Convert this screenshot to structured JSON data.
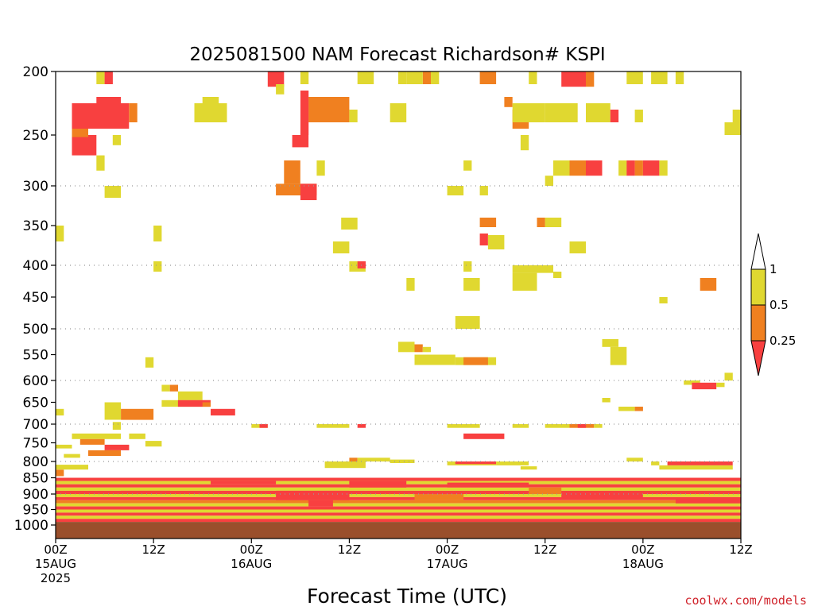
{
  "chart_data": {
    "type": "heatmap",
    "title": "2025081500 NAM Forecast Richardson# KSPI",
    "xlabel": "Forecast Time (UTC)",
    "ylabel": "",
    "credit": "coolwx.com/models",
    "x_unit": "forecast hour",
    "xlim": [
      0,
      84
    ],
    "y_unit": "hPa",
    "ylim": [
      1000,
      200
    ],
    "y_ticks": [
      200,
      250,
      300,
      350,
      400,
      450,
      500,
      550,
      600,
      650,
      700,
      750,
      800,
      850,
      900,
      950,
      1000
    ],
    "grid_levels": [
      300,
      400,
      500,
      600,
      700,
      800,
      900,
      1000
    ],
    "x_ticks": [
      {
        "hour": 0,
        "lines": [
          "00Z",
          "15AUG",
          "2025"
        ]
      },
      {
        "hour": 12,
        "lines": [
          "12Z"
        ]
      },
      {
        "hour": 24,
        "lines": [
          "00Z",
          "16AUG"
        ]
      },
      {
        "hour": 36,
        "lines": [
          "12Z"
        ]
      },
      {
        "hour": 48,
        "lines": [
          "00Z",
          "17AUG"
        ]
      },
      {
        "hour": 60,
        "lines": [
          "12Z"
        ]
      },
      {
        "hour": 72,
        "lines": [
          "00Z",
          "18AUG"
        ]
      },
      {
        "hour": 84,
        "lines": [
          "12Z"
        ]
      }
    ],
    "legend": {
      "ticks": [
        "1",
        "0.5",
        "0.25"
      ],
      "bins": [
        {
          "name": "0.5-1",
          "color": "#e0d830"
        },
        {
          "name": "0.25-0.5",
          "color": "#f08020"
        },
        {
          "name": "<0.25",
          "color": "#f84040"
        }
      ]
    },
    "colors": {
      "Y": "#e0d830",
      "O": "#f08020",
      "R": "#f84040",
      "ground": "#9a4f2c",
      "grid": "#999999"
    },
    "ground_level": 990,
    "cells": [
      [
        "Y",
        5,
        6,
        200,
        210
      ],
      [
        "R",
        6,
        7,
        200,
        210
      ],
      [
        "R",
        2,
        9,
        225,
        245
      ],
      [
        "O",
        9,
        10,
        225,
        240
      ],
      [
        "R",
        5,
        8,
        220,
        230
      ],
      [
        "R",
        2,
        5,
        250,
        270
      ],
      [
        "O",
        2,
        4,
        245,
        252
      ],
      [
        "Y",
        7,
        8,
        250,
        260
      ],
      [
        "Y",
        5,
        6,
        270,
        285
      ],
      [
        "Y",
        6,
        8,
        300,
        315
      ],
      [
        "Y",
        17,
        21,
        225,
        240
      ],
      [
        "Y",
        18,
        20,
        220,
        228
      ],
      [
        "Y",
        0,
        1,
        350,
        370
      ],
      [
        "Y",
        12,
        13,
        350,
        370
      ],
      [
        "Y",
        12,
        13,
        395,
        410
      ],
      [
        "R",
        26,
        28,
        200,
        212
      ],
      [
        "Y",
        27,
        28,
        210,
        218
      ],
      [
        "Y",
        30,
        31,
        200,
        210
      ],
      [
        "O",
        31,
        36,
        220,
        240
      ],
      [
        "R",
        30,
        31,
        215,
        250
      ],
      [
        "R",
        29,
        31,
        250,
        262
      ],
      [
        "Y",
        36,
        37,
        230,
        240
      ],
      [
        "O",
        28,
        30,
        275,
        298
      ],
      [
        "O",
        27,
        32,
        298,
        312
      ],
      [
        "R",
        30,
        32,
        298,
        318
      ],
      [
        "Y",
        32,
        33,
        275,
        290
      ],
      [
        "Y",
        37,
        39,
        200,
        210
      ],
      [
        "Y",
        42,
        43,
        200,
        210
      ],
      [
        "O",
        45,
        46,
        200,
        210
      ],
      [
        "Y",
        43,
        45,
        200,
        210
      ],
      [
        "Y",
        46,
        47,
        200,
        210
      ],
      [
        "Y",
        41,
        43,
        225,
        240
      ],
      [
        "Y",
        35,
        37,
        340,
        355
      ],
      [
        "Y",
        34,
        36,
        370,
        385
      ],
      [
        "Y",
        36,
        38,
        395,
        410
      ],
      [
        "R",
        37,
        38,
        395,
        405
      ],
      [
        "Y",
        48,
        50,
        300,
        312
      ],
      [
        "Y",
        52,
        53,
        300,
        312
      ],
      [
        "Y",
        50,
        51,
        275,
        285
      ],
      [
        "O",
        52,
        54,
        200,
        210
      ],
      [
        "O",
        55,
        56,
        220,
        228
      ],
      [
        "O",
        52,
        54,
        340,
        352
      ],
      [
        "R",
        52,
        53,
        360,
        375
      ],
      [
        "Y",
        53,
        55,
        362,
        380
      ],
      [
        "Y",
        50,
        51,
        395,
        410
      ],
      [
        "Y",
        50,
        52,
        420,
        440
      ],
      [
        "Y",
        43,
        44,
        420,
        440
      ],
      [
        "O",
        56,
        58,
        230,
        245
      ],
      [
        "Y",
        56,
        60,
        225,
        240
      ],
      [
        "Y",
        57,
        58,
        250,
        265
      ],
      [
        "Y",
        58,
        59,
        200,
        210
      ],
      [
        "Y",
        60,
        61,
        290,
        300
      ],
      [
        "O",
        59,
        60,
        340,
        352
      ],
      [
        "Y",
        60,
        62,
        340,
        352
      ],
      [
        "Y",
        56,
        61,
        400,
        412
      ],
      [
        "Y",
        56,
        59,
        412,
        440
      ],
      [
        "Y",
        61,
        62,
        410,
        420
      ],
      [
        "R",
        62,
        65,
        200,
        212
      ],
      [
        "O",
        65,
        66,
        200,
        212
      ],
      [
        "Y",
        60,
        64,
        225,
        240
      ],
      [
        "Y",
        61,
        63,
        275,
        290
      ],
      [
        "O",
        63,
        65,
        275,
        290
      ],
      [
        "R",
        65,
        67,
        275,
        290
      ],
      [
        "Y",
        63,
        65,
        370,
        385
      ],
      [
        "Y",
        65,
        68,
        225,
        240
      ],
      [
        "R",
        68,
        69,
        230,
        240
      ],
      [
        "Y",
        71,
        72,
        230,
        240
      ],
      [
        "Y",
        70,
        72,
        200,
        210
      ],
      [
        "Y",
        73,
        75,
        200,
        210
      ],
      [
        "Y",
        76,
        77,
        200,
        210
      ],
      [
        "Y",
        69,
        70,
        275,
        290
      ],
      [
        "R",
        70,
        71,
        275,
        290
      ],
      [
        "O",
        71,
        72,
        275,
        290
      ],
      [
        "R",
        72,
        74,
        275,
        290
      ],
      [
        "Y",
        74,
        75,
        275,
        290
      ],
      [
        "Y",
        74,
        75,
        450,
        460
      ],
      [
        "O",
        79,
        81,
        420,
        440
      ],
      [
        "Y",
        82,
        84,
        240,
        250
      ],
      [
        "Y",
        83,
        84,
        230,
        240
      ],
      [
        "Y",
        49,
        52,
        480,
        500
      ],
      [
        "Y",
        42,
        44,
        525,
        545
      ],
      [
        "O",
        44,
        45,
        530,
        545
      ],
      [
        "Y",
        45,
        46,
        535,
        545
      ],
      [
        "Y",
        44,
        49,
        550,
        570
      ],
      [
        "Y",
        49,
        54,
        555,
        570
      ],
      [
        "O",
        50,
        53,
        555,
        570
      ],
      [
        "Y",
        67,
        69,
        520,
        535
      ],
      [
        "Y",
        68,
        70,
        535,
        570
      ],
      [
        "Y",
        11,
        12,
        555,
        575
      ],
      [
        "Y",
        13,
        14,
        610,
        625
      ],
      [
        "O",
        14,
        15,
        610,
        625
      ],
      [
        "Y",
        15,
        18,
        625,
        645
      ],
      [
        "Y",
        13,
        19,
        645,
        660
      ],
      [
        "R",
        15,
        19,
        645,
        660
      ],
      [
        "O",
        18,
        19,
        650,
        660
      ],
      [
        "Y",
        6,
        8,
        650,
        690
      ],
      [
        "O",
        8,
        12,
        665,
        690
      ],
      [
        "R",
        19,
        22,
        665,
        680
      ],
      [
        "Y",
        0,
        1,
        665,
        680
      ],
      [
        "Y",
        7,
        8,
        695,
        715
      ],
      [
        "Y",
        24,
        26,
        700,
        710
      ],
      [
        "R",
        25,
        26,
        700,
        710
      ],
      [
        "Y",
        32,
        36,
        700,
        710
      ],
      [
        "R",
        37,
        38,
        700,
        710
      ],
      [
        "Y",
        48,
        52,
        700,
        710
      ],
      [
        "Y",
        56,
        58,
        700,
        710
      ],
      [
        "Y",
        60,
        63,
        700,
        710
      ],
      [
        "O",
        63,
        66,
        700,
        710
      ],
      [
        "R",
        64,
        65,
        700,
        710
      ],
      [
        "Y",
        66,
        67,
        700,
        710
      ],
      [
        "R",
        50,
        55,
        725,
        740
      ],
      [
        "Y",
        67,
        68,
        640,
        650
      ],
      [
        "Y",
        69,
        71,
        660,
        670
      ],
      [
        "O",
        71,
        72,
        660,
        670
      ],
      [
        "Y",
        77,
        79,
        600,
        610
      ],
      [
        "R",
        78,
        81,
        605,
        620
      ],
      [
        "Y",
        81,
        82,
        605,
        615
      ],
      [
        "Y",
        82,
        83,
        585,
        600
      ],
      [
        "Y",
        2,
        8,
        725,
        740
      ],
      [
        "O",
        3,
        6,
        740,
        755
      ],
      [
        "Y",
        0,
        2,
        755,
        765
      ],
      [
        "R",
        6,
        9,
        755,
        770
      ],
      [
        "O",
        4,
        8,
        770,
        785
      ],
      [
        "Y",
        1,
        3,
        780,
        790
      ],
      [
        "Y",
        9,
        11,
        725,
        740
      ],
      [
        "Y",
        11,
        13,
        745,
        760
      ],
      [
        "O",
        0,
        1,
        825,
        845
      ],
      [
        "Y",
        0,
        4,
        810,
        825
      ],
      [
        "Y",
        33,
        38,
        800,
        820
      ],
      [
        "O",
        36,
        37,
        790,
        800
      ],
      [
        "Y",
        37,
        41,
        790,
        800
      ],
      [
        "Y",
        41,
        44,
        795,
        805
      ],
      [
        "Y",
        48,
        54,
        800,
        812
      ],
      [
        "R",
        49,
        54,
        800,
        808
      ],
      [
        "Y",
        54,
        58,
        800,
        812
      ],
      [
        "Y",
        57,
        59,
        815,
        825
      ],
      [
        "Y",
        70,
        72,
        790,
        800
      ],
      [
        "Y",
        73,
        74,
        800,
        812
      ],
      [
        "R",
        75,
        83,
        800,
        812
      ],
      [
        "Y",
        74,
        83,
        812,
        825
      ],
      [
        "R",
        0,
        84,
        850,
        860
      ],
      [
        "Y",
        0,
        84,
        860,
        870
      ],
      [
        "R",
        0,
        84,
        870,
        880
      ],
      [
        "Y",
        0,
        84,
        880,
        890
      ],
      [
        "R",
        0,
        84,
        890,
        900
      ],
      [
        "Y",
        0,
        84,
        900,
        910
      ],
      [
        "R",
        0,
        84,
        910,
        920
      ],
      [
        "O",
        0,
        84,
        920,
        930
      ],
      [
        "Y",
        0,
        84,
        930,
        940
      ],
      [
        "R",
        0,
        84,
        940,
        950
      ],
      [
        "Y",
        0,
        84,
        950,
        960
      ],
      [
        "R",
        0,
        84,
        960,
        970
      ],
      [
        "Y",
        0,
        84,
        970,
        980
      ],
      [
        "R",
        0,
        84,
        980,
        990
      ],
      [
        "R",
        27,
        36,
        890,
        920
      ],
      [
        "R",
        31,
        34,
        920,
        940
      ],
      [
        "R",
        36,
        43,
        860,
        880
      ],
      [
        "R",
        8,
        14,
        890,
        900
      ],
      [
        "R",
        19,
        27,
        860,
        870
      ],
      [
        "R",
        48,
        58,
        865,
        880
      ],
      [
        "R",
        62,
        72,
        900,
        915
      ],
      [
        "R",
        76,
        84,
        915,
        930
      ],
      [
        "O",
        44,
        50,
        900,
        920
      ],
      [
        "O",
        58,
        62,
        880,
        900
      ]
    ]
  }
}
